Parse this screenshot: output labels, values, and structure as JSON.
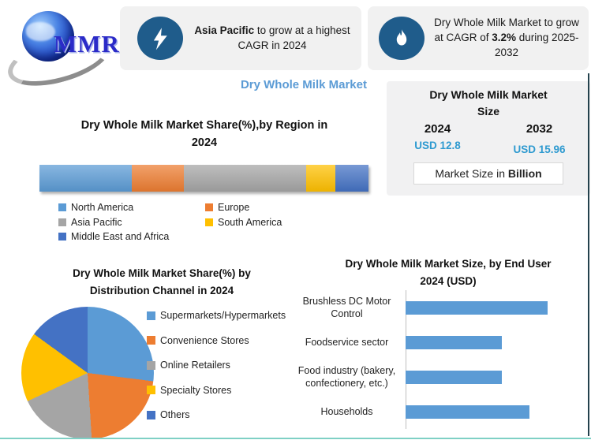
{
  "logo": {
    "text": "MMR"
  },
  "header": {
    "card1": {
      "bold": "Asia Pacific",
      "rest": " to grow at a highest CAGR in 2024"
    },
    "card2": {
      "pre": "Dry Whole Milk Market to grow at CAGR of ",
      "bold": "3.2%",
      "post": " during 2025-2032"
    }
  },
  "main_title": "Dry Whole Milk Market",
  "size_panel": {
    "title": "Dry Whole Milk Market Size",
    "title_lines": [
      "Dry Whole Milk Market",
      "Size"
    ],
    "year1": "2024",
    "year2": "2032",
    "value1": "USD 12.8",
    "value2": "USD 15.96",
    "note": "Market Size in Billion",
    "note_pre": "Market Size in ",
    "note_bold": "Billion"
  },
  "chart_data": [
    {
      "type": "bar",
      "subtype": "stacked-horizontal-single-bar",
      "title": "Dry Whole Milk Market Share(%),by Region in 2024",
      "title_lines": [
        "Dry Whole Milk Market Share(%),by Region in",
        "2024"
      ],
      "categories": [
        "North America",
        "Europe",
        "Asia Pacific",
        "South America",
        "Middle East and Africa"
      ],
      "values": [
        28,
        16,
        37,
        9,
        10
      ],
      "unit": "percent share (estimated from segment widths; no data labels shown)",
      "colors": [
        "#5B9BD5",
        "#ED7D31",
        "#A5A5A5",
        "#FFC000",
        "#4472C4"
      ],
      "legend_position": "bottom"
    },
    {
      "type": "pie",
      "title": "Dry Whole Milk Market Share(%) by Distribution Channel in 2024",
      "title_lines": [
        "Dry Whole Milk Market Share(%) by",
        "Distribution Channel in 2024"
      ],
      "categories": [
        "Supermarkets/Hypermarkets",
        "Convenience Stores",
        "Online Retailers",
        "Specialty Stores",
        "Others"
      ],
      "values": [
        27,
        22,
        19,
        17,
        15
      ],
      "unit": "percent share (estimated from slice angles; no data labels shown)",
      "colors": [
        "#5B9BD5",
        "#ED7D31",
        "#A5A5A5",
        "#FFC000",
        "#4472C4"
      ],
      "legend_position": "right",
      "start_angle_deg": 0
    },
    {
      "type": "bar",
      "subtype": "horizontal",
      "title": "Dry Whole Milk Market Size, by End User 2024 (USD)",
      "title_lines": [
        "Dry Whole Milk Market Size, by End User",
        "2024  (USD)"
      ],
      "categories": [
        "Brushless DC Motor Control",
        "Foodservice sector",
        "Food industry (bakery, confectionery, etc.)",
        "Households"
      ],
      "values": [
        100,
        68,
        68,
        87
      ],
      "unit": "relative bar length (x-axis unlabeled)",
      "bar_color": "#5B9BD5",
      "axis_color": "#BFBFBF"
    }
  ],
  "colors": {
    "accent_blue": "#5B9BD5",
    "icon_circle_blue": "#1F5C8B",
    "value_text_blue": "#2E9AD0",
    "card_bg": "#F1F1F1",
    "panel_bg": "#F1F1F2",
    "bottom_accent": "#7FD0C5",
    "right_edge": "#24424D",
    "logo_text_blue": "#2B2BC8"
  }
}
